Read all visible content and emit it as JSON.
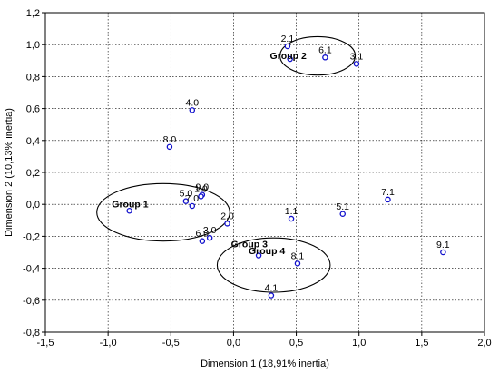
{
  "chart_data": {
    "type": "scatter",
    "xlabel": "Dimension 1 (18,91% inertia)",
    "ylabel": "Dimension 2 (10,13% inertia)",
    "xlim": [
      -1.5,
      2.0
    ],
    "ylim": [
      -0.8,
      1.2
    ],
    "x_ticks": [
      -1.5,
      -1.0,
      -0.5,
      0.0,
      0.5,
      1.0,
      1.5,
      2.0
    ],
    "x_tick_labels": [
      "-1,5",
      "-1,0",
      "-0,5",
      "0,0",
      "0,5",
      "1,0",
      "1,5",
      "2,0"
    ],
    "y_ticks": [
      -0.8,
      -0.6,
      -0.4,
      -0.2,
      0.0,
      0.2,
      0.4,
      0.6,
      0.8,
      1.0,
      1.2
    ],
    "y_tick_labels": [
      "-0,8",
      "-0,6",
      "-0,4",
      "-0,2",
      "0,0",
      "0,2",
      "0,4",
      "0,6",
      "0,8",
      "1,0",
      "1,2"
    ],
    "grid": true,
    "marker_color": "#1010cc",
    "points": [
      {
        "label": "2.1",
        "x": 0.43,
        "y": 0.99
      },
      {
        "label": "",
        "x": 0.45,
        "y": 0.91
      },
      {
        "label": "6.1",
        "x": 0.73,
        "y": 0.92
      },
      {
        "label": "3.1",
        "x": 0.98,
        "y": 0.88
      },
      {
        "label": "4.0",
        "x": -0.33,
        "y": 0.59
      },
      {
        "label": "8.0",
        "x": -0.51,
        "y": 0.36
      },
      {
        "label": "9.0",
        "x": -0.25,
        "y": 0.06
      },
      {
        "label": "1.0",
        "x": -0.26,
        "y": 0.05
      },
      {
        "label": "5.0",
        "x": -0.38,
        "y": 0.02
      },
      {
        "label": "7.0",
        "x": -0.33,
        "y": -0.01
      },
      {
        "label": "",
        "x": -0.83,
        "y": -0.04
      },
      {
        "label": "2.0",
        "x": -0.05,
        "y": -0.12
      },
      {
        "label": "3.0",
        "x": -0.19,
        "y": -0.21
      },
      {
        "label": "6.0",
        "x": -0.25,
        "y": -0.23
      },
      {
        "label": "1.1",
        "x": 0.46,
        "y": -0.09
      },
      {
        "label": "5.1",
        "x": 0.87,
        "y": -0.06
      },
      {
        "label": "7.1",
        "x": 1.23,
        "y": 0.03
      },
      {
        "label": "9.1",
        "x": 1.67,
        "y": -0.3
      },
      {
        "label": "",
        "x": 0.2,
        "y": -0.32
      },
      {
        "label": "8.1",
        "x": 0.51,
        "y": -0.37
      },
      {
        "label": "4.1",
        "x": 0.3,
        "y": -0.57
      }
    ],
    "groups": [
      {
        "name": "Group 1",
        "label_x": -0.97,
        "label_y": -0.02,
        "cx": -0.56,
        "cy": -0.05,
        "rx": 0.53,
        "ry": 0.18
      },
      {
        "name": "Group 2",
        "label_x": 0.29,
        "label_y": 0.91,
        "cx": 0.67,
        "cy": 0.93,
        "rx": 0.3,
        "ry": 0.12
      },
      {
        "name": "Group 3",
        "label_x": -0.02,
        "label_y": -0.27,
        "cx": 0.32,
        "cy": -0.38,
        "rx": 0.45,
        "ry": 0.17
      },
      {
        "name": "Group 4",
        "label_x": 0.12,
        "label_y": -0.31,
        "cx": null,
        "cy": null,
        "rx": null,
        "ry": null
      }
    ]
  }
}
